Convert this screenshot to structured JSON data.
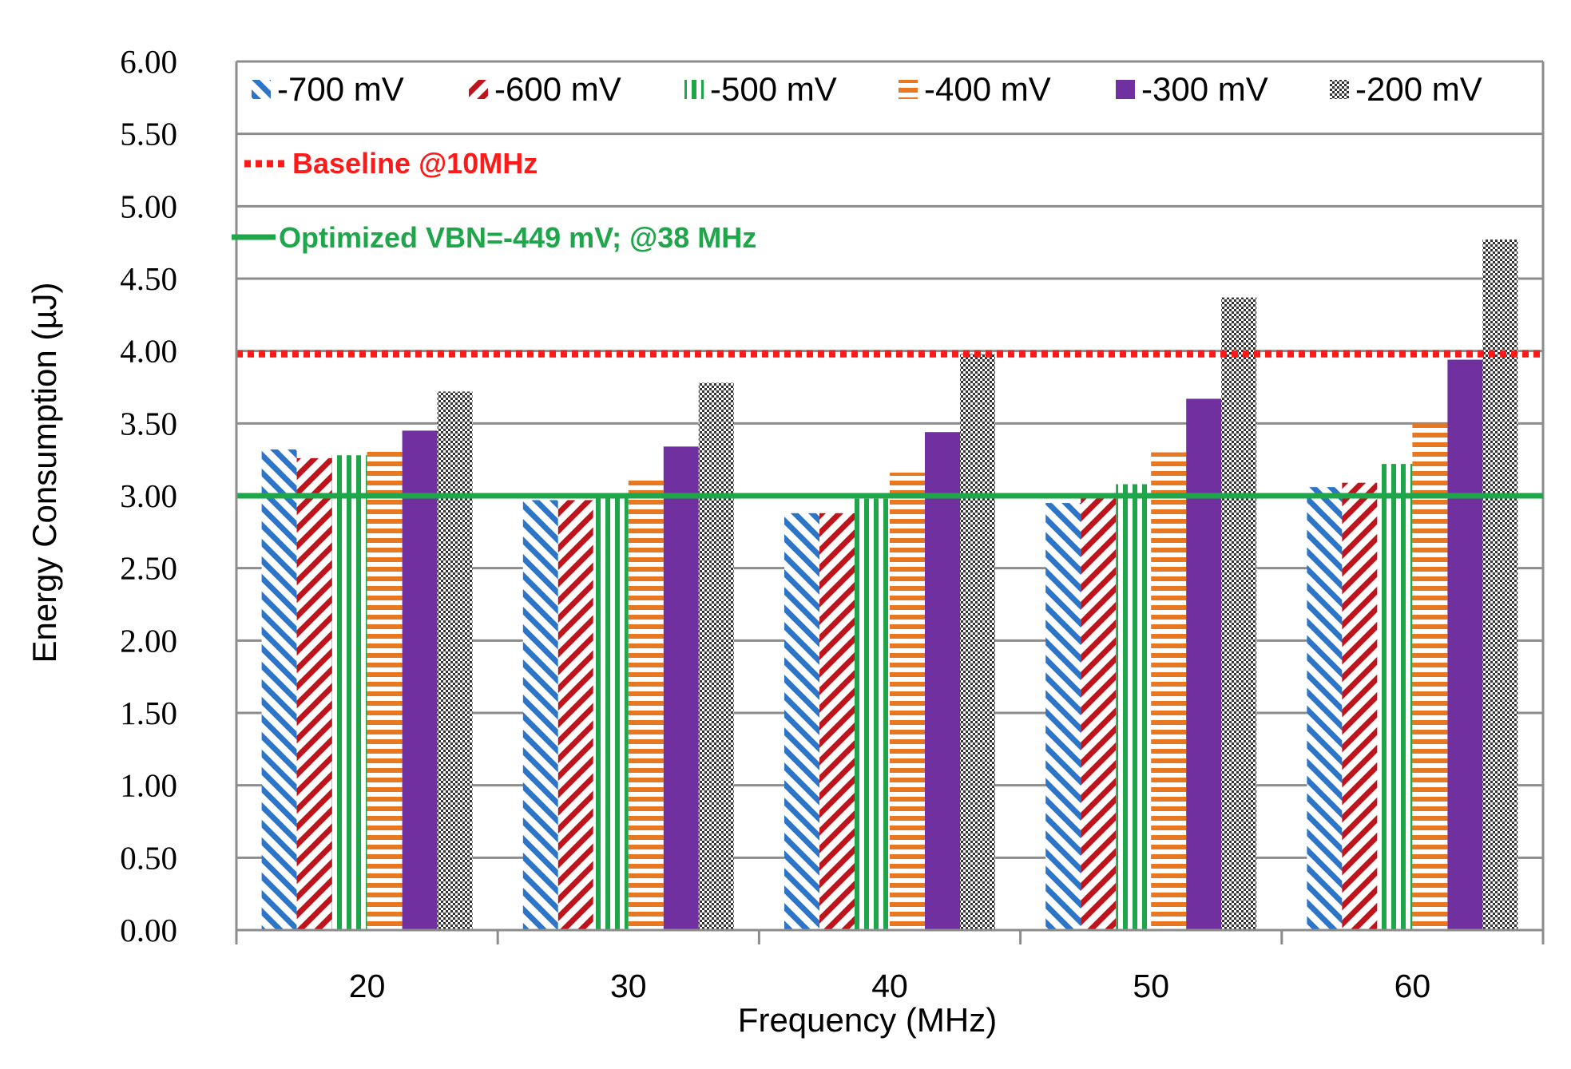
{
  "chart_data": {
    "type": "bar",
    "title": "",
    "xlabel": "Frequency (MHz)",
    "ylabel": "Energy Consumption  (µJ)",
    "categories": [
      "20",
      "30",
      "40",
      "50",
      "60"
    ],
    "ylim": [
      0,
      6
    ],
    "yticks": [
      "0.00",
      "0.50",
      "1.00",
      "1.50",
      "2.00",
      "2.50",
      "3.00",
      "3.50",
      "4.00",
      "4.50",
      "5.00",
      "5.50",
      "6.00"
    ],
    "grid": true,
    "legend_position": "top",
    "series": [
      {
        "name": "-700 mV",
        "pattern": "diag-left",
        "color": "#2e75c6",
        "values": [
          3.32,
          2.97,
          2.88,
          2.95,
          3.06
        ]
      },
      {
        "name": "-600 mV",
        "pattern": "diag-right",
        "color": "#c0141c",
        "values": [
          3.26,
          2.97,
          2.88,
          3.0,
          3.09
        ]
      },
      {
        "name": "-500 mV",
        "pattern": "vertical",
        "color": "#1fa64a",
        "values": [
          3.28,
          2.99,
          2.98,
          3.08,
          3.22
        ]
      },
      {
        "name": "-400 mV",
        "pattern": "horizontal",
        "color": "#e87722",
        "values": [
          3.33,
          3.12,
          3.16,
          3.3,
          3.5
        ]
      },
      {
        "name": "-300 mV",
        "pattern": "solid",
        "color": "#7030a0",
        "values": [
          3.45,
          3.34,
          3.44,
          3.67,
          3.94
        ]
      },
      {
        "name": "-200 mV",
        "pattern": "checker",
        "color": "#333333",
        "values": [
          3.72,
          3.78,
          3.98,
          4.37,
          4.77
        ]
      }
    ],
    "reference_lines": [
      {
        "name": "Baseline @10MHz",
        "value": 3.98,
        "style": "dotted",
        "color": "#ff1a1a"
      },
      {
        "name": "Optimized VBN=-449 mV; @38 MHz",
        "value": 3.0,
        "style": "solid",
        "color": "#1fa64a"
      }
    ]
  }
}
